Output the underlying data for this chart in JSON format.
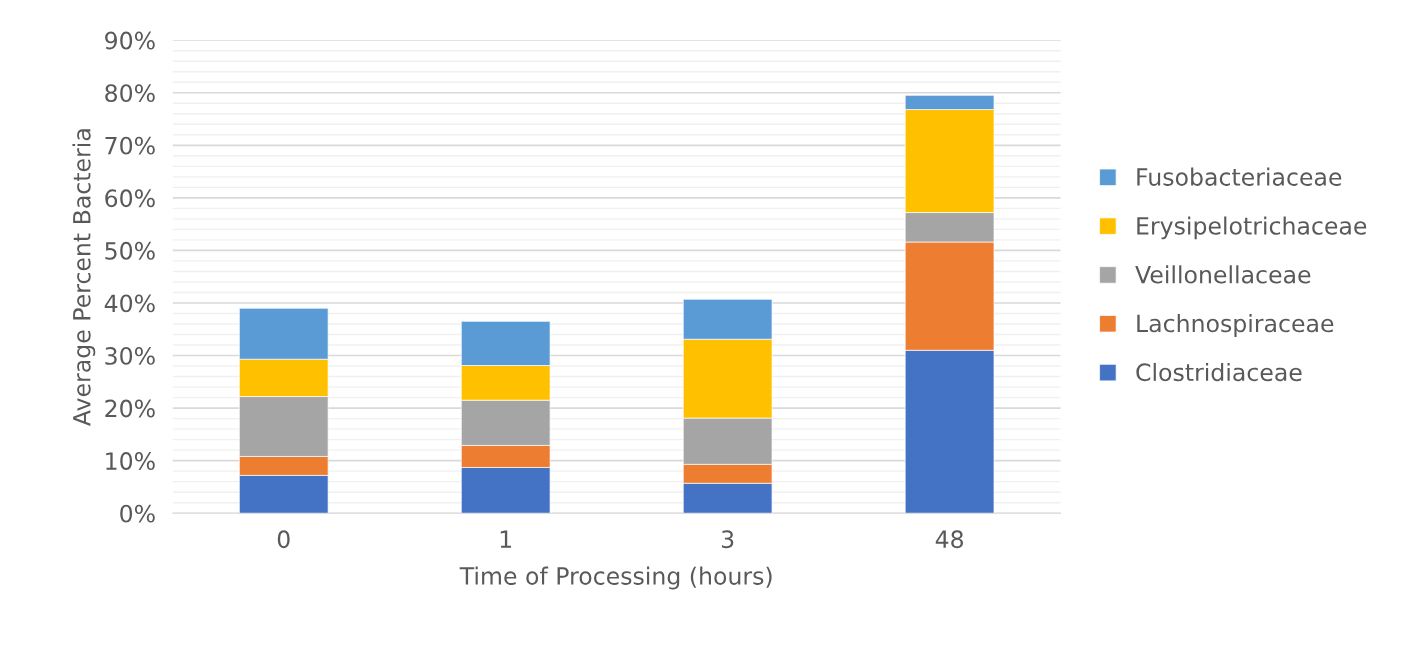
{
  "chart_data": {
    "type": "bar",
    "stacked": true,
    "xlabel": "Time of Processing (hours)",
    "ylabel": "Average Percent Bacteria",
    "categories": [
      "0",
      "1",
      "3",
      "48"
    ],
    "series": [
      {
        "name": "Clostridiaceae",
        "color": "#4472c4",
        "values": [
          7.2,
          8.7,
          5.7,
          31.0
        ]
      },
      {
        "name": "Lachnospiraceae",
        "color": "#ed7d31",
        "values": [
          3.6,
          4.2,
          3.6,
          20.6
        ]
      },
      {
        "name": "Veillonellaceae",
        "color": "#a5a5a5",
        "values": [
          11.4,
          8.6,
          8.8,
          5.6
        ]
      },
      {
        "name": "Erysipelotrichaceae",
        "color": "#ffc000",
        "values": [
          7.1,
          6.6,
          15.0,
          19.6
        ]
      },
      {
        "name": "Fusobacteriaceae",
        "color": "#5b9bd5",
        "values": [
          9.7,
          8.4,
          7.6,
          2.7
        ]
      }
    ],
    "ylim": [
      0,
      90
    ],
    "yticks": [
      {
        "value": 0,
        "label": "0%"
      },
      {
        "value": 2,
        "label": null
      },
      {
        "value": 4,
        "label": null
      },
      {
        "value": 6,
        "label": null
      },
      {
        "value": 8,
        "label": null
      },
      {
        "value": 10,
        "label": "10%"
      },
      {
        "value": 12,
        "label": null
      },
      {
        "value": 14,
        "label": null
      },
      {
        "value": 16,
        "label": null
      },
      {
        "value": 18,
        "label": null
      },
      {
        "value": 20,
        "label": "20%"
      },
      {
        "value": 22,
        "label": null
      },
      {
        "value": 24,
        "label": null
      },
      {
        "value": 26,
        "label": null
      },
      {
        "value": 28,
        "label": null
      },
      {
        "value": 30,
        "label": "30%"
      },
      {
        "value": 32,
        "label": null
      },
      {
        "value": 34,
        "label": null
      },
      {
        "value": 36,
        "label": null
      },
      {
        "value": 38,
        "label": null
      },
      {
        "value": 40,
        "label": "40%"
      },
      {
        "value": 42,
        "label": null
      },
      {
        "value": 44,
        "label": null
      },
      {
        "value": 46,
        "label": null
      },
      {
        "value": 48,
        "label": null
      },
      {
        "value": 50,
        "label": "50%"
      },
      {
        "value": 52,
        "label": null
      },
      {
        "value": 54,
        "label": null
      },
      {
        "value": 56,
        "label": null
      },
      {
        "value": 58,
        "label": null
      },
      {
        "value": 60,
        "label": "60%"
      },
      {
        "value": 62,
        "label": null
      },
      {
        "value": 64,
        "label": null
      },
      {
        "value": 66,
        "label": null
      },
      {
        "value": 68,
        "label": null
      },
      {
        "value": 70,
        "label": "70%"
      },
      {
        "value": 72,
        "label": null
      },
      {
        "value": 74,
        "label": null
      },
      {
        "value": 76,
        "label": null
      },
      {
        "value": 78,
        "label": null
      },
      {
        "value": 80,
        "label": "80%"
      },
      {
        "value": 82,
        "label": null
      },
      {
        "value": 84,
        "label": null
      },
      {
        "value": 86,
        "label": null
      },
      {
        "value": 88,
        "label": null
      },
      {
        "value": 90,
        "label": "90%"
      }
    ],
    "grid": "y",
    "legend": "right"
  }
}
